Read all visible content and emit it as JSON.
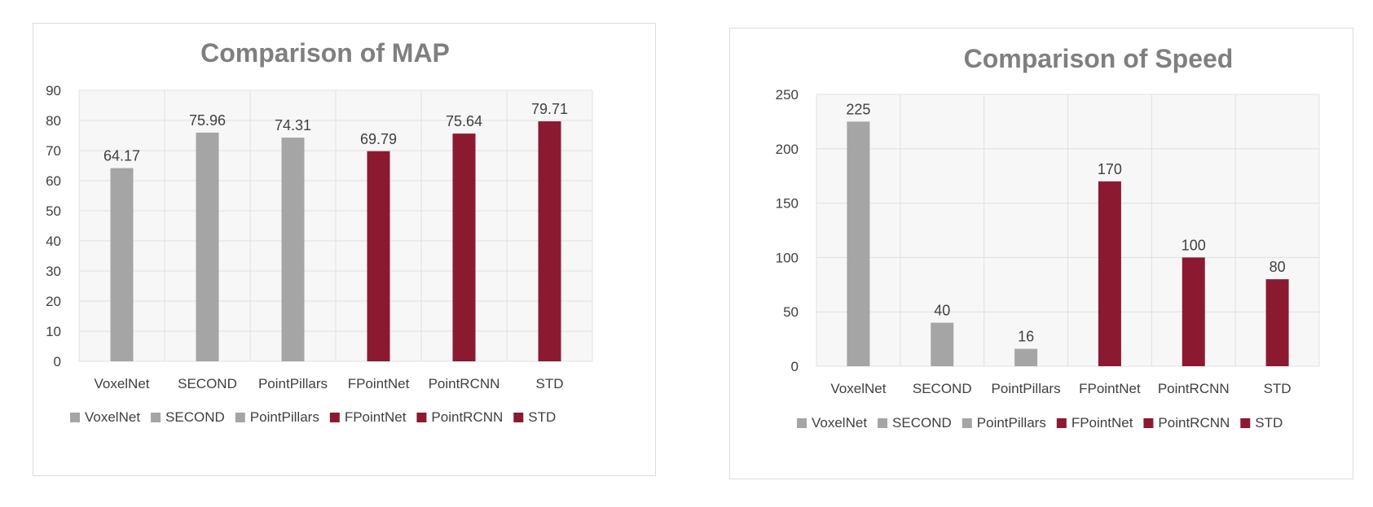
{
  "colors": {
    "gray": "#a5a5a5",
    "crimson": "#8b1a30",
    "grid": "#e0e0e0",
    "plot_bg": "#f7f7f7"
  },
  "chart_data": [
    {
      "type": "bar",
      "title": "Comparison of MAP",
      "categories": [
        "VoxelNet",
        "SECOND",
        "PointPillars",
        "FPointNet",
        "PointRCNN",
        "STD"
      ],
      "values": [
        64.17,
        75.96,
        74.31,
        69.79,
        75.64,
        79.71
      ],
      "data_labels": [
        "64.17",
        "75.96",
        "74.31",
        "69.79",
        "75.64",
        "79.71"
      ],
      "bar_colors": [
        "#a5a5a5",
        "#a5a5a5",
        "#a5a5a5",
        "#8b1a30",
        "#8b1a30",
        "#8b1a30"
      ],
      "ylim": [
        0,
        90
      ],
      "yticks": [
        0,
        10,
        20,
        30,
        40,
        50,
        60,
        70,
        80,
        90
      ],
      "legend": [
        "VoxelNet",
        "SECOND",
        "PointPillars",
        "FPointNet",
        "PointRCNN",
        "STD"
      ],
      "legend_position": "bottom",
      "grid": true
    },
    {
      "type": "bar",
      "title": "Comparison of Speed",
      "categories": [
        "VoxelNet",
        "SECOND",
        "PointPillars",
        "FPointNet",
        "PointRCNN",
        "STD"
      ],
      "values": [
        225,
        40,
        16,
        170,
        100,
        80
      ],
      "data_labels": [
        "225",
        "40",
        "16",
        "170",
        "100",
        "80"
      ],
      "bar_colors": [
        "#a5a5a5",
        "#a5a5a5",
        "#a5a5a5",
        "#8b1a30",
        "#8b1a30",
        "#8b1a30"
      ],
      "ylim": [
        0,
        250
      ],
      "yticks": [
        0,
        50,
        100,
        150,
        200,
        250
      ],
      "legend": [
        "VoxelNet",
        "SECOND",
        "PointPillars",
        "FPointNet",
        "PointRCNN",
        "STD"
      ],
      "legend_position": "bottom",
      "grid": true
    }
  ]
}
